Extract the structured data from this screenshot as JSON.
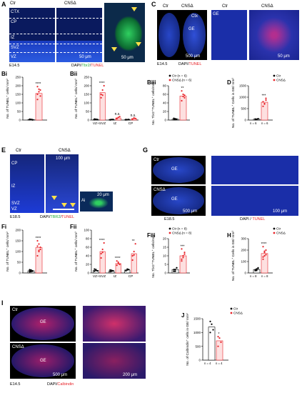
{
  "colors": {
    "ctrl_dot": "#000000",
    "cns_dot": "#e8242a",
    "cns_bar": "#e8242a",
    "nuclei": "#1d3bd6",
    "bg_micro": "#0a1a5e",
    "tbr2": "#1fae3a"
  },
  "panels": {
    "A": {
      "label": "A",
      "ctr": "Ctr",
      "cns": "CNSΔ",
      "zones": [
        "CTX",
        "CP",
        "IZ",
        "SVZ",
        "VZ"
      ],
      "scale_left": "50 μm",
      "scale_right": "50 μm",
      "age": "E14.5",
      "stain_dapi": "DAPI/",
      "stain_tbr2": "Tbr2",
      "stain_sep": "/",
      "stain_tunel": "TUNEL"
    },
    "C": {
      "label": "C",
      "ctr": "Ctr",
      "cns": "CNSΔ",
      "ctr2": "Ctr",
      "cns2": "CNSΔ",
      "ctx": "Ctx",
      "ge": "GE",
      "ge2": "GE",
      "scale1": "500 μm",
      "scale2": "50 μm",
      "age": "E14.5",
      "stain_dapi": "DAPI/",
      "stain_tunel": "TUNEL"
    },
    "E": {
      "label": "E",
      "ctr": "Ctr",
      "cns": "CNSΔ",
      "scale": "100 μm",
      "scale_inset": "20 μm",
      "inset": "Ai",
      "zones": [
        "CP",
        "IZ",
        "SVZ",
        "VZ"
      ],
      "age": "E18.5",
      "stain_dapi": "DAPI/",
      "stain_tbr2": "TBR2",
      "stain_sep": "/",
      "stain_tunel": "TUNEL"
    },
    "G": {
      "label": "G",
      "ctr": "Ctr",
      "cns": "CNSΔ",
      "ge1": "GE",
      "ge2": "GE",
      "scale1": "500 μm",
      "scale2": "100 μm",
      "age": "E18.5",
      "stain_dapi": "DAPI / ",
      "stain_tunel": "TUNEL"
    },
    "I": {
      "label": "I",
      "ctr": "Ctr",
      "cns": "CNSΔ",
      "ge1": "GE",
      "ge2": "GE",
      "scale1": "500 μm",
      "scale2": "200 μm",
      "age": "E14.5",
      "stain_dapi": "DAPI/",
      "stain_calb": "Calbindin"
    }
  },
  "chart_data": [
    {
      "id": "Bi",
      "type": "bar",
      "label": "Bi",
      "ylabel": "No. of TUNEL⁺ cells/ mm²",
      "ylim": [
        0,
        250
      ],
      "yticks": [
        "0",
        "50",
        "100",
        "150",
        "200",
        "250"
      ],
      "categories": [
        ""
      ],
      "sig": [
        "****"
      ],
      "series": [
        {
          "values": [
            3
          ]
        },
        {
          "values": [
            155
          ]
        }
      ],
      "points": [
        [
          [
            2,
            3,
            1,
            5,
            4,
            2,
            3
          ]
        ],
        [
          [
            120,
            180,
            140,
            195,
            165,
            175,
            150
          ]
        ]
      ]
    },
    {
      "id": "Bii",
      "type": "bar",
      "label": "Bii",
      "ylabel": "No. of TUNEL⁺ cells/ mm²",
      "ylim": [
        0,
        250
      ],
      "yticks": [
        "0",
        "50",
        "100",
        "150",
        "200",
        "250"
      ],
      "categories": [
        "VZ+SVZ",
        "IZ",
        "CP"
      ],
      "sig": [
        "****",
        "n.s.",
        "n.s."
      ],
      "series": [
        {
          "values": [
            4,
            3,
            3
          ]
        },
        {
          "values": [
            160,
            12,
            8
          ]
        }
      ],
      "points": [
        [
          [
            2,
            5,
            3,
            6,
            4
          ],
          [
            2,
            3,
            4,
            1
          ],
          [
            3,
            2,
            4,
            1
          ]
        ],
        [
          [
            130,
            175,
            200,
            150,
            145
          ],
          [
            8,
            15,
            20,
            10
          ],
          [
            5,
            12,
            9,
            6
          ]
        ]
      ]
    },
    {
      "id": "Biii",
      "type": "bar",
      "label": "Biii",
      "ylabel": "No. Tbr2⁺TUNEL⁺ cells/mm²",
      "ylim": [
        0,
        80
      ],
      "yticks": [
        "0",
        "20",
        "40",
        "60",
        "80"
      ],
      "categories": [
        ""
      ],
      "sig": [
        "**"
      ],
      "legend": [
        "Ctr (n = 6)",
        "CNSΔ (n = 6)"
      ],
      "series": [
        {
          "values": [
            2
          ]
        },
        {
          "values": [
            56
          ]
        }
      ],
      "points": [
        [
          [
            1,
            3,
            2,
            4,
            1,
            2
          ]
        ],
        [
          [
            45,
            60,
            52,
            68,
            55,
            58
          ]
        ]
      ]
    },
    {
      "id": "D",
      "type": "bar",
      "label": "D",
      "ylabel": "No. of TUNEL⁺ Cells in GE/ mm²",
      "ylim": [
        0,
        1500
      ],
      "yticks": [
        "0",
        "500",
        "1000",
        "1500"
      ],
      "categories": [
        ""
      ],
      "sig": [
        "***"
      ],
      "legend": [
        "Ctr",
        "CNSΔ"
      ],
      "ncount": [
        "n = 6",
        "n = 6"
      ],
      "series": [
        {
          "values": [
            40
          ]
        },
        {
          "values": [
            780
          ]
        }
      ],
      "points": [
        [
          [
            20,
            35,
            50,
            45,
            30,
            60
          ]
        ],
        [
          [
            600,
            700,
            950,
            800,
            720,
            870
          ]
        ]
      ]
    },
    {
      "id": "Fi",
      "type": "bar",
      "label": "Fi",
      "ylabel": "No. of TUNEL⁺ cells/ mm²",
      "ylim": [
        0,
        200
      ],
      "yticks": [
        "0",
        "50",
        "100",
        "150",
        "200"
      ],
      "categories": [
        ""
      ],
      "sig": [
        "****"
      ],
      "series": [
        {
          "values": [
            10
          ]
        },
        {
          "values": [
            118
          ]
        }
      ],
      "points": [
        [
          [
            5,
            12,
            8,
            15,
            6,
            10,
            9,
            14
          ]
        ],
        [
          [
            80,
            100,
            120,
            150,
            135,
            110,
            125,
            105
          ]
        ]
      ]
    },
    {
      "id": "Fii",
      "type": "bar",
      "label": "Fii",
      "ylabel": "No. of TUNEL⁺ cells/ mm²",
      "ylim": [
        0,
        100
      ],
      "yticks": [
        "0",
        "20",
        "40",
        "60",
        "80",
        "100"
      ],
      "categories": [
        "VZ+SVZ",
        "IZ",
        "CP"
      ],
      "sig": [
        "****",
        "****",
        "**"
      ],
      "series": [
        {
          "values": [
            6,
            5,
            7
          ]
        },
        {
          "values": [
            50,
            22,
            45
          ]
        }
      ],
      "points": [
        [
          [
            4,
            8,
            5,
            9,
            6
          ],
          [
            3,
            6,
            5,
            7,
            4
          ],
          [
            5,
            9,
            8,
            6,
            7
          ]
        ],
        [
          [
            35,
            55,
            70,
            45,
            48
          ],
          [
            18,
            25,
            20,
            28,
            22
          ],
          [
            30,
            50,
            68,
            40,
            42
          ]
        ]
      ]
    },
    {
      "id": "Fiii",
      "type": "bar",
      "label": "Fiii",
      "ylabel": "No. Tbr2⁺TUNEL⁺ cells/mm²",
      "ylim": [
        0,
        20
      ],
      "yticks": [
        "0",
        "5",
        "10",
        "15",
        "20"
      ],
      "categories": [
        ""
      ],
      "sig": [
        "***"
      ],
      "legend": [
        "Ctr (n = 8)",
        "CNSΔ (n = 8)"
      ],
      "series": [
        {
          "values": [
            2
          ]
        },
        {
          "values": [
            10
          ]
        }
      ],
      "points": [
        [
          [
            1,
            2,
            3,
            1,
            2,
            3,
            2,
            1
          ]
        ],
        [
          [
            7,
            9,
            12,
            14,
            10,
            11,
            8,
            10
          ]
        ]
      ]
    },
    {
      "id": "H",
      "type": "bar",
      "label": "H",
      "ylabel": "No. of TUNEL⁺ Cells in GE/ mm²",
      "ylim": [
        0,
        300
      ],
      "yticks": [
        "0",
        "100",
        "200",
        "300"
      ],
      "categories": [
        ""
      ],
      "sig": [
        "****"
      ],
      "legend": [
        "Ctr",
        "CNSΔ"
      ],
      "ncount": [
        "n = 8",
        "n = 8"
      ],
      "series": [
        {
          "values": [
            30
          ]
        },
        {
          "values": [
            170
          ]
        }
      ],
      "points": [
        [
          [
            20,
            35,
            40,
            25,
            30,
            45,
            28,
            22
          ]
        ],
        [
          [
            120,
            150,
            200,
            230,
            180,
            160,
            140,
            190
          ]
        ]
      ]
    },
    {
      "id": "J",
      "type": "bar",
      "label": "J",
      "ylabel": "No. of Calbindin⁺ cells in GE/ mm²",
      "ylim": [
        0,
        1500
      ],
      "yticks": [
        "0",
        "500",
        "1000",
        "1500"
      ],
      "categories": [
        ""
      ],
      "sig": [
        "*"
      ],
      "legend": [
        "Ctr",
        "CNSΔ"
      ],
      "ncount": [
        "n = 4",
        "n = 4"
      ],
      "series": [
        {
          "values": [
            1200
          ]
        },
        {
          "values": [
            700
          ]
        }
      ],
      "points": [
        [
          [
            1000,
            1300,
            1100,
            1400
          ]
        ],
        [
          [
            500,
            800,
            650,
            850
          ]
        ]
      ]
    }
  ]
}
